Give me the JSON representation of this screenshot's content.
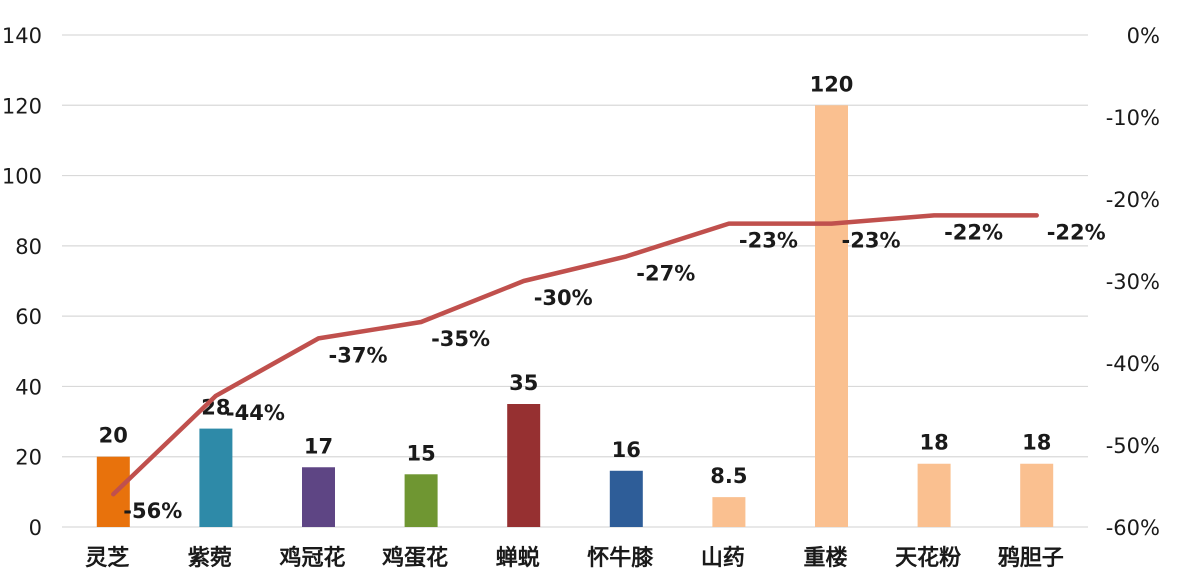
{
  "chart_data": {
    "type": "bar",
    "categories": [
      "灵芝",
      "紫菀",
      "鸡冠花",
      "鸡蛋花",
      "蝉蜕",
      "怀牛膝",
      "山药",
      "重楼",
      "天花粉",
      "鸦胆子"
    ],
    "series": [
      {
        "type": "bar",
        "axis": "left",
        "values": [
          20,
          28,
          17,
          15,
          35,
          16,
          8.5,
          120,
          18,
          18
        ],
        "labels": [
          "20",
          "28",
          "17",
          "15",
          "35",
          "16",
          "8.5",
          "120",
          "18",
          "18"
        ],
        "colors": [
          "#e8720c",
          "#2e8aa8",
          "#5e4584",
          "#6f9632",
          "#963031",
          "#2e5d98",
          "#fac090",
          "#fac090",
          "#fac090",
          "#fac090"
        ]
      },
      {
        "type": "line",
        "axis": "right",
        "values": [
          -56,
          -44,
          -37,
          -35,
          -30,
          -27,
          -23,
          -23,
          -22,
          -22
        ],
        "labels": [
          "-56%",
          "-44%",
          "-37%",
          "-35%",
          "-30%",
          "-27%",
          "-23%",
          "-23%",
          "-22%",
          "-22%"
        ],
        "color": "#c0504d"
      }
    ],
    "left_axis": {
      "ylim": [
        0,
        140
      ],
      "ticks": [
        0,
        20,
        40,
        60,
        80,
        100,
        120,
        140
      ],
      "tick_labels": [
        "0",
        "20",
        "40",
        "60",
        "80",
        "100",
        "120",
        "140"
      ]
    },
    "right_axis": {
      "ylim": [
        -60,
        0
      ],
      "ticks": [
        -60,
        -50,
        -40,
        -30,
        -20,
        -10,
        0
      ],
      "tick_labels": [
        "-60%",
        "-50%",
        "-40%",
        "-30%",
        "-20%",
        "-10%",
        "0%"
      ]
    },
    "grid": true,
    "legend": "none"
  }
}
